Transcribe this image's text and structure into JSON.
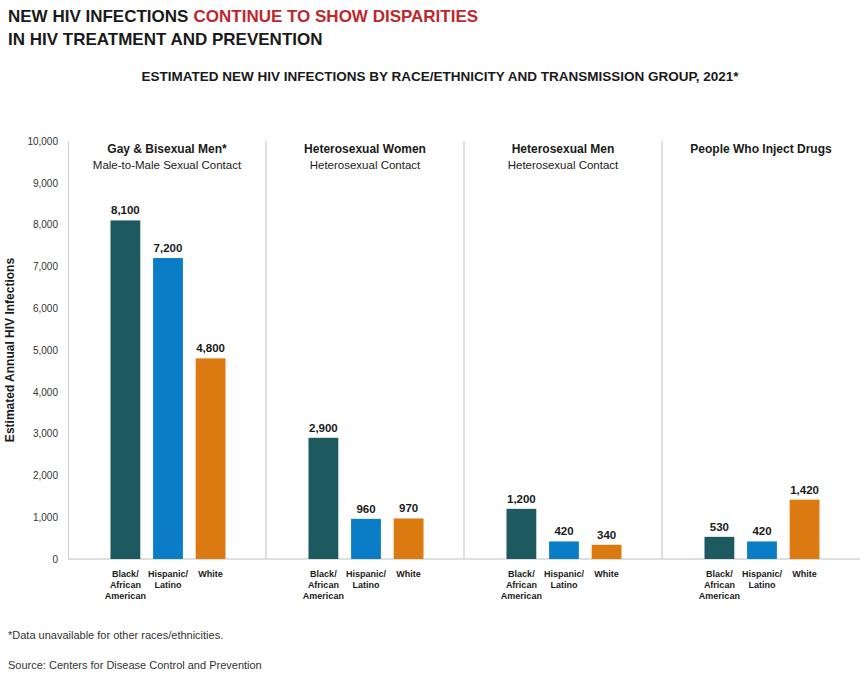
{
  "chart_data": {
    "type": "bar",
    "title": [
      "NEW HIV INFECTIONS",
      "CONTINUE TO SHOW DISPARITIES",
      "IN HIV TREATMENT AND PREVENTION"
    ],
    "subtitle": "ESTIMATED NEW HIV INFECTIONS BY RACE/ETHNICITY AND TRANSMISSION GROUP, 2021*",
    "y_label": "Estimated Annual HIV Infections",
    "categories": [
      "Gay & Bisexual Men*",
      "Heterosexual Women",
      "Heterosexual Men",
      "People Who Inject Drugs"
    ],
    "category_subtitles": [
      "Male-to-Male Sexual Contact",
      "Heterosexual Contact",
      "Heterosexual Contact",
      null
    ],
    "series": [
      {
        "name": "Black/African American",
        "color": "#1d5a60",
        "values": [
          8100,
          2900,
          1200,
          530
        ],
        "value_labels": [
          "8,100",
          "2,900",
          "1,200",
          "530"
        ]
      },
      {
        "name": "Hispanic/Latino",
        "color": "#0b7cc6",
        "values": [
          7200,
          960,
          420,
          420
        ],
        "value_labels": [
          "7,200",
          "960",
          "420",
          "420"
        ]
      },
      {
        "name": "White",
        "color": "#dc7a12",
        "values": [
          4800,
          970,
          340,
          1420
        ],
        "value_labels": [
          "4,800",
          "970",
          "340",
          "1,420"
        ]
      }
    ],
    "ylim": [
      0,
      10000
    ],
    "yticks": [
      0,
      {
        "value": 1000,
        "label": "1,000"
      },
      {
        "value": 2000,
        "label": "2,000"
      },
      {
        "value": 3000,
        "label": "3,000"
      },
      {
        "value": 4000,
        "label": "4,000"
      },
      {
        "value": 5000,
        "label": "5,000"
      },
      {
        "value": 6000,
        "label": "6,000"
      },
      {
        "value": 7000,
        "label": "7,000"
      },
      {
        "value": 8000,
        "label": "8,000"
      },
      {
        "value": 9000,
        "label": "9,000"
      },
      {
        "value": 10000,
        "label": "10,000"
      }
    ],
    "grid": false,
    "data_labels": true,
    "notes": [
      "*Data unavailable for other races/ethnicities.",
      "Source: Centers for Disease Control and Prevention"
    ]
  }
}
